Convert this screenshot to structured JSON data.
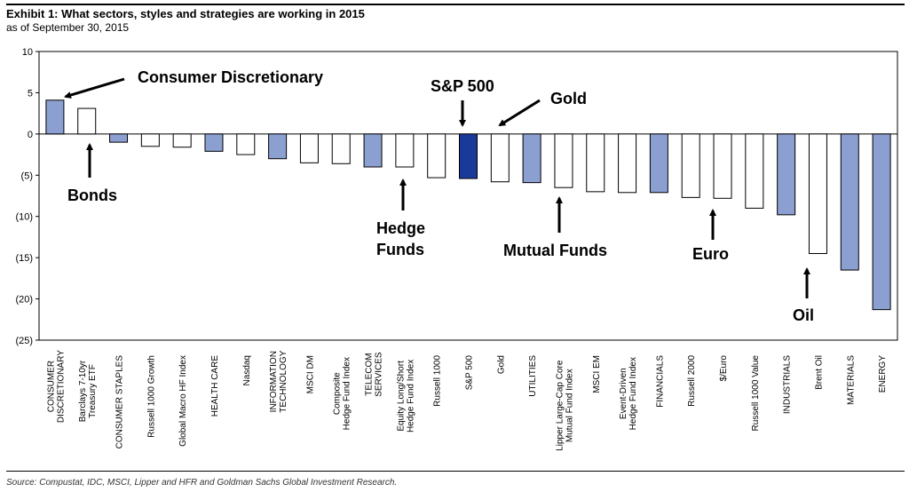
{
  "header": {
    "title": "Exhibit 1: What sectors, styles and strategies are working in 2015",
    "subtitle": "as of September 30, 2015"
  },
  "footer": {
    "source": "Source: Compustat, IDC, MSCI, Lipper and HFR and Goldman Sachs Global Investment Research."
  },
  "chart_data": {
    "type": "bar",
    "ylim": [
      -25,
      10
    ],
    "yticks": [
      10,
      5,
      0,
      -5,
      -10,
      -15,
      -20,
      -25
    ],
    "ytick_labels": [
      "10",
      "5",
      "0",
      "(5)",
      "(10)",
      "(15)",
      "(20)",
      "(25)"
    ],
    "grid": false,
    "colors": {
      "sector": "#8b9fd1",
      "other": "#ffffff",
      "sp500": "#1a3a9a",
      "outline": "#000000"
    },
    "bars": [
      {
        "label": "CONSUMER DISCRETIONARY",
        "lines": [
          "CONSUMER",
          "DISCRETIONARY"
        ],
        "value": 4.1,
        "kind": "sector"
      },
      {
        "label": "Barclays 7-10yr Treasury ETF",
        "lines": [
          "Barclays 7-10yr",
          "Treasury ETF"
        ],
        "value": 3.1,
        "kind": "other"
      },
      {
        "label": "CONSUMER STAPLES",
        "lines": [
          "CONSUMER STAPLES"
        ],
        "value": -1.0,
        "kind": "sector"
      },
      {
        "label": "Russell 1000 Growth",
        "lines": [
          "Russell 1000 Growth"
        ],
        "value": -1.5,
        "kind": "other"
      },
      {
        "label": "Global Macro HF Index",
        "lines": [
          "Global Macro HF Index"
        ],
        "value": -1.6,
        "kind": "other"
      },
      {
        "label": "HEALTH CARE",
        "lines": [
          "HEALTH CARE"
        ],
        "value": -2.1,
        "kind": "sector"
      },
      {
        "label": "Nasdaq",
        "lines": [
          "Nasdaq"
        ],
        "value": -2.5,
        "kind": "other"
      },
      {
        "label": "INFORMATION TECHNOLOGY",
        "lines": [
          "INFORMATION",
          "TECHNOLOGY"
        ],
        "value": -3.0,
        "kind": "sector"
      },
      {
        "label": "MSCI DM",
        "lines": [
          "MSCI DM"
        ],
        "value": -3.5,
        "kind": "other"
      },
      {
        "label": "Composite Hedge Fund Index",
        "lines": [
          "Composite",
          "Hedge Fund Index"
        ],
        "value": -3.6,
        "kind": "other"
      },
      {
        "label": "TELECOM SERVICES",
        "lines": [
          "TELECOM",
          "SERVICES"
        ],
        "value": -4.0,
        "kind": "sector"
      },
      {
        "label": "Equity Long/Short Hedge Fund Index",
        "lines": [
          "Equity Long/Short",
          "Hedge Fund Index"
        ],
        "value": -4.0,
        "kind": "other"
      },
      {
        "label": "Russell 1000",
        "lines": [
          "Russell 1000"
        ],
        "value": -5.3,
        "kind": "other"
      },
      {
        "label": "S&P 500",
        "lines": [
          "S&P 500"
        ],
        "value": -5.4,
        "kind": "sp500"
      },
      {
        "label": "Gold",
        "lines": [
          "Gold"
        ],
        "value": -5.8,
        "kind": "other"
      },
      {
        "label": "UTILITIES",
        "lines": [
          "UTILITIES"
        ],
        "value": -5.9,
        "kind": "sector"
      },
      {
        "label": "Lipper Large-Cap Core Mutual Fund Index",
        "lines": [
          "Lipper Large-Cap Core",
          "Mutual Fund Index"
        ],
        "value": -6.5,
        "kind": "other"
      },
      {
        "label": "MSCI EM",
        "lines": [
          "MSCI EM"
        ],
        "value": -7.0,
        "kind": "other"
      },
      {
        "label": "Event-Driven Hedge Fund Index",
        "lines": [
          "Event-Driven",
          "Hedge Fund Index"
        ],
        "value": -7.1,
        "kind": "other"
      },
      {
        "label": "FINANCIALS",
        "lines": [
          "FINANCIALS"
        ],
        "value": -7.1,
        "kind": "sector"
      },
      {
        "label": "Russell 2000",
        "lines": [
          "Russell 2000"
        ],
        "value": -7.7,
        "kind": "other"
      },
      {
        "label": "$/Euro",
        "lines": [
          "$/Euro"
        ],
        "value": -7.8,
        "kind": "other"
      },
      {
        "label": "Russell 1000 Value",
        "lines": [
          "Russell 1000 Value"
        ],
        "value": -9.0,
        "kind": "other"
      },
      {
        "label": "INDUSTRIALS",
        "lines": [
          "INDUSTRIALS"
        ],
        "value": -9.8,
        "kind": "sector"
      },
      {
        "label": "Brent Oil",
        "lines": [
          "Brent Oil"
        ],
        "value": -14.5,
        "kind": "other"
      },
      {
        "label": "MATERIALS",
        "lines": [
          "MATERIALS"
        ],
        "value": -16.5,
        "kind": "sector"
      },
      {
        "label": "ENERGY",
        "lines": [
          "ENERGY"
        ],
        "value": -21.3,
        "kind": "sector"
      }
    ],
    "annotations": [
      {
        "text": "Consumer Discretionary",
        "points_to": "CONSUMER DISCRETIONARY"
      },
      {
        "text": "Bonds",
        "points_to": "Barclays 7-10yr Treasury ETF"
      },
      {
        "text": "S&P 500",
        "points_to": "S&P 500"
      },
      {
        "text": "Gold",
        "points_to": "Gold"
      },
      {
        "text": "Hedge Funds",
        "points_to": "Equity Long/Short Hedge Fund Index"
      },
      {
        "text": "Mutual Funds",
        "points_to": "Lipper Large-Cap Core Mutual Fund Index"
      },
      {
        "text": "Euro",
        "points_to": "$/Euro"
      },
      {
        "text": "Oil",
        "points_to": "Brent Oil"
      }
    ]
  }
}
